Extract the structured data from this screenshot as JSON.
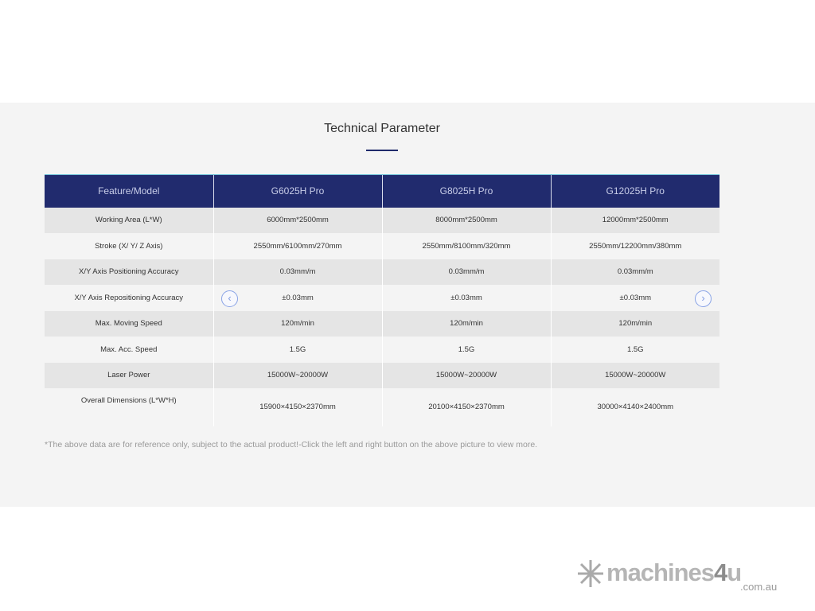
{
  "section": {
    "title": "Technical Parameter"
  },
  "table": {
    "headers": [
      "Feature/Model",
      "G6025H Pro",
      "G8025H Pro",
      "G12025H Pro"
    ],
    "rows": [
      [
        "Working Area (L*W)",
        "6000mm*2500mm",
        "8000mm*2500mm",
        "12000mm*2500mm"
      ],
      [
        "Stroke (X/ Y/ Z Axis)",
        "2550mm/6100mm/270mm",
        "2550mm/8100mm/320mm",
        "2550mm/12200mm/380mm"
      ],
      [
        "X/Y Axis Positioning Accuracy",
        "0.03mm/m",
        "0.03mm/m",
        "0.03mm/m"
      ],
      [
        "X/Y Axis Repositioning Accuracy",
        "±0.03mm",
        "±0.03mm",
        "±0.03mm"
      ],
      [
        "Max. Moving Speed",
        "120m/min",
        "120m/min",
        "120m/min"
      ],
      [
        "Max. Acc. Speed",
        "1.5G",
        "1.5G",
        "1.5G"
      ],
      [
        "Laser Power",
        "15000W~20000W",
        "15000W~20000W",
        "15000W~20000W"
      ],
      [
        "Overall Dimensions (L*W*H)",
        "15900×4150×2370mm",
        "20100×4150×2370mm",
        "30000×4140×2400mm"
      ]
    ]
  },
  "nav": {
    "prev_icon": "chevron-left-icon",
    "next_icon": "chevron-right-icon",
    "prev": "‹",
    "next": "›"
  },
  "note": "*The above data are for reference only, subject to the actual product!-Click the left and right button on the above picture to view more.",
  "watermark": {
    "brand": "machines4u",
    "domain": ".com.au"
  },
  "colors": {
    "header": "#212b6e",
    "accent": "#1f2a6b",
    "nav": "#8aa4e6"
  }
}
